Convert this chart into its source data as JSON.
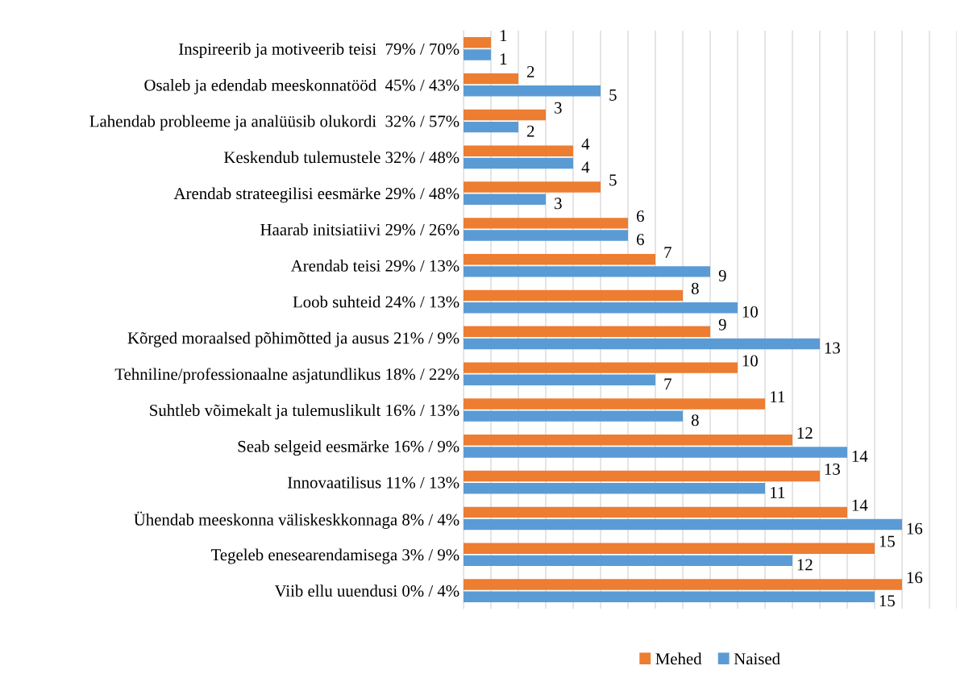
{
  "chart_data": {
    "type": "bar",
    "orientation": "horizontal",
    "categories": [
      "Inspireerib ja motiveerib teisi  79% / 70%",
      "Osaleb ja edendab meeskonnatööd  45% / 43%",
      "Lahendab probleeme ja analüüsib olukordi  32% / 57%",
      "Keskendub tulemustele 32% / 48%",
      "Arendab strateegilisi eesmärke 29% / 48%",
      "Haarab initsiatiivi 29% / 26%",
      "Arendab teisi 29% / 13%",
      "Loob suhteid 24% / 13%",
      "Kõrged moraalsed põhimõtted ja ausus 21% / 9%",
      "Tehniline/professionaalne asjatundlikus 18% / 22%",
      "Suhtleb võimekalt ja tulemuslikult 16% / 13%",
      "Seab selgeid eesmärke 16% / 9%",
      "Innovaatilisus 11% / 13%",
      "Ühendab meeskonna väliskeskkonnaga 8% / 4%",
      "Tegeleb enesearendamisega 3% / 9%",
      "Viib ellu uuendusi 0% / 4%"
    ],
    "series": [
      {
        "name": "Mehed",
        "color": "#ed7d31",
        "values": [
          1,
          2,
          3,
          4,
          5,
          6,
          7,
          8,
          9,
          10,
          11,
          12,
          13,
          14,
          15,
          16
        ]
      },
      {
        "name": "Naised",
        "color": "#5b9bd5",
        "values": [
          1,
          5,
          2,
          4,
          3,
          6,
          9,
          10,
          13,
          7,
          8,
          14,
          11,
          16,
          12,
          15
        ]
      }
    ],
    "xlim": [
      0,
      18
    ],
    "xticks": [
      {
        "value": 0,
        "label": null
      },
      {
        "value": 1,
        "label": null
      },
      {
        "value": 2,
        "label": null
      },
      {
        "value": 3,
        "label": null
      },
      {
        "value": 4,
        "label": null
      },
      {
        "value": 5,
        "label": null
      },
      {
        "value": 6,
        "label": null
      },
      {
        "value": 7,
        "label": null
      },
      {
        "value": 8,
        "label": null
      },
      {
        "value": 9,
        "label": null
      },
      {
        "value": 10,
        "label": null
      },
      {
        "value": 11,
        "label": null
      },
      {
        "value": 12,
        "label": null
      },
      {
        "value": 13,
        "label": null
      },
      {
        "value": 14,
        "label": null
      },
      {
        "value": 15,
        "label": null
      },
      {
        "value": 16,
        "label": null
      },
      {
        "value": 17,
        "label": null
      },
      {
        "value": 18,
        "label": null
      }
    ],
    "grid": "x",
    "legend": "bottom",
    "tick_labels": "y",
    "data_labels": true
  }
}
